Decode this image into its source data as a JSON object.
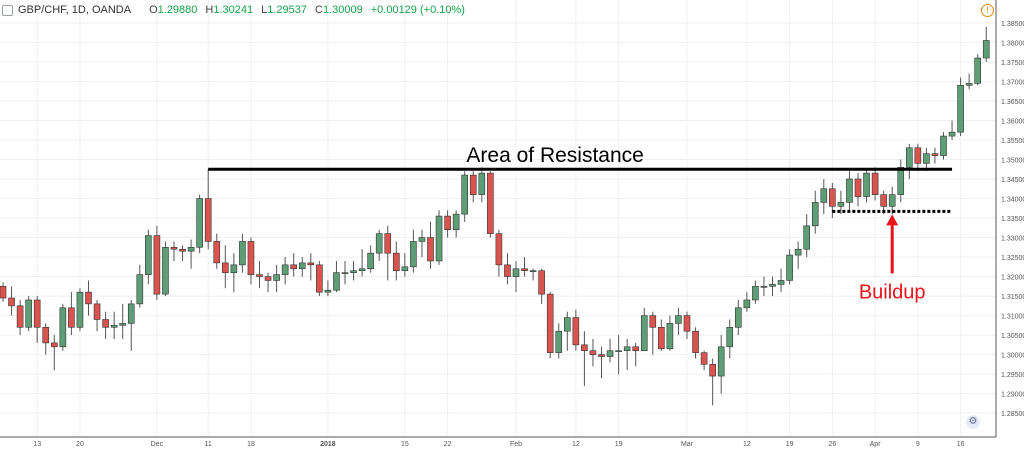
{
  "header": {
    "symbol": "GBP/CHF, 1D, OANDA",
    "open_label": "O",
    "open": "1.29880",
    "high_label": "H",
    "high": "1.30241",
    "low_label": "L",
    "low": "1.29537",
    "close_label": "C",
    "close": "1.30009",
    "change": "+0.00129 (+0.10%)"
  },
  "icons": {
    "menu": "checkbox-icon",
    "warning": "alert-icon",
    "settings": "gear-icon"
  },
  "colors": {
    "up": "#5e9e77",
    "down": "#d9534f",
    "resistance": "#000000",
    "arrow": "#e8141b",
    "buildup_text": "#e8141b"
  },
  "chart_data": {
    "type": "candlestick",
    "ylim": [
      1.2835,
      1.386
    ],
    "y_ticks": [
      "1.38500",
      "1.38000",
      "1.37500",
      "1.37000",
      "1.36500",
      "1.36000",
      "1.35500",
      "1.35000",
      "1.34500",
      "1.34000",
      "1.33500",
      "1.33000",
      "1.32500",
      "1.32000",
      "1.31500",
      "1.31000",
      "1.30500",
      "1.30000",
      "1.29500",
      "1.29000",
      "1.28500"
    ],
    "x_tick_labels": [
      {
        "index": 4,
        "label": "13"
      },
      {
        "index": 9,
        "label": "20"
      },
      {
        "index": 18,
        "label": "Dec"
      },
      {
        "index": 24,
        "label": "11"
      },
      {
        "index": 29,
        "label": "18"
      },
      {
        "index": 38,
        "label": "2018"
      },
      {
        "index": 47,
        "label": "15"
      },
      {
        "index": 52,
        "label": "22"
      },
      {
        "index": 60,
        "label": "Feb"
      },
      {
        "index": 67,
        "label": "12"
      },
      {
        "index": 72,
        "label": "19"
      },
      {
        "index": 80,
        "label": "Mar"
      },
      {
        "index": 87,
        "label": "12"
      },
      {
        "index": 92,
        "label": "19"
      },
      {
        "index": 97,
        "label": "26"
      },
      {
        "index": 102,
        "label": "Apr"
      },
      {
        "index": 107,
        "label": "9"
      },
      {
        "index": 112,
        "label": "16"
      }
    ],
    "candles": [
      [
        1.3175,
        1.3145,
        1.3185,
        1.3135
      ],
      [
        1.3145,
        1.3125,
        1.3175,
        1.31
      ],
      [
        1.3125,
        1.307,
        1.314,
        1.305
      ],
      [
        1.307,
        1.314,
        1.315,
        1.306
      ],
      [
        1.314,
        1.307,
        1.315,
        1.303
      ],
      [
        1.307,
        1.303,
        1.308,
        1.3
      ],
      [
        1.303,
        1.302,
        1.305,
        1.296
      ],
      [
        1.302,
        1.312,
        1.313,
        1.301
      ],
      [
        1.312,
        1.307,
        1.316,
        1.305
      ],
      [
        1.307,
        1.316,
        1.317,
        1.306
      ],
      [
        1.316,
        1.313,
        1.319,
        1.31
      ],
      [
        1.313,
        1.309,
        1.314,
        1.306
      ],
      [
        1.309,
        1.307,
        1.311,
        1.304
      ],
      [
        1.307,
        1.3075,
        1.311,
        1.304
      ],
      [
        1.3075,
        1.308,
        1.313,
        1.304
      ],
      [
        1.308,
        1.313,
        1.314,
        1.301
      ],
      [
        1.313,
        1.3205,
        1.323,
        1.312
      ],
      [
        1.3205,
        1.3305,
        1.332,
        1.318
      ],
      [
        1.3305,
        1.3155,
        1.333,
        1.314
      ],
      [
        1.3155,
        1.3275,
        1.329,
        1.315
      ],
      [
        1.3275,
        1.327,
        1.329,
        1.324
      ],
      [
        1.327,
        1.3265,
        1.328,
        1.324
      ],
      [
        1.3265,
        1.3275,
        1.3295,
        1.322
      ],
      [
        1.3275,
        1.34,
        1.341,
        1.326
      ],
      [
        1.34,
        1.329,
        1.3475,
        1.327
      ],
      [
        1.329,
        1.3235,
        1.331,
        1.322
      ],
      [
        1.3235,
        1.321,
        1.328,
        1.317
      ],
      [
        1.321,
        1.323,
        1.326,
        1.316
      ],
      [
        1.323,
        1.329,
        1.331,
        1.321
      ],
      [
        1.329,
        1.3205,
        1.33,
        1.318
      ],
      [
        1.3205,
        1.32,
        1.324,
        1.317
      ],
      [
        1.32,
        1.319,
        1.321,
        1.316
      ],
      [
        1.319,
        1.3205,
        1.323,
        1.316
      ],
      [
        1.3205,
        1.323,
        1.325,
        1.318
      ],
      [
        1.323,
        1.322,
        1.326,
        1.32
      ],
      [
        1.322,
        1.3235,
        1.325,
        1.32
      ],
      [
        1.3235,
        1.323,
        1.326,
        1.319
      ],
      [
        1.323,
        1.316,
        1.324,
        1.315
      ],
      [
        1.316,
        1.3165,
        1.319,
        1.315
      ],
      [
        1.3165,
        1.321,
        1.324,
        1.316
      ],
      [
        1.321,
        1.321,
        1.324,
        1.318
      ],
      [
        1.321,
        1.3215,
        1.324,
        1.319
      ],
      [
        1.3215,
        1.322,
        1.327,
        1.32
      ],
      [
        1.322,
        1.326,
        1.328,
        1.321
      ],
      [
        1.326,
        1.331,
        1.332,
        1.324
      ],
      [
        1.331,
        1.326,
        1.333,
        1.319
      ],
      [
        1.326,
        1.3215,
        1.329,
        1.319
      ],
      [
        1.3215,
        1.3225,
        1.326,
        1.32
      ],
      [
        1.3225,
        1.329,
        1.332,
        1.321
      ],
      [
        1.329,
        1.33,
        1.332,
        1.325
      ],
      [
        1.33,
        1.324,
        1.334,
        1.322
      ],
      [
        1.324,
        1.3355,
        1.337,
        1.323
      ],
      [
        1.3355,
        1.332,
        1.337,
        1.33
      ],
      [
        1.332,
        1.336,
        1.337,
        1.33
      ],
      [
        1.336,
        1.346,
        1.347,
        1.334
      ],
      [
        1.346,
        1.341,
        1.347,
        1.339
      ],
      [
        1.341,
        1.3465,
        1.348,
        1.339
      ],
      [
        1.3465,
        1.331,
        1.347,
        1.33
      ],
      [
        1.331,
        1.323,
        1.332,
        1.32
      ],
      [
        1.323,
        1.32,
        1.326,
        1.318
      ],
      [
        1.32,
        1.322,
        1.324,
        1.316
      ],
      [
        1.322,
        1.3215,
        1.325,
        1.32
      ],
      [
        1.3215,
        1.3215,
        1.322,
        1.319
      ],
      [
        1.3215,
        1.3155,
        1.322,
        1.313
      ],
      [
        1.3155,
        1.3005,
        1.316,
        1.299
      ],
      [
        1.3005,
        1.306,
        1.308,
        1.299
      ],
      [
        1.306,
        1.3095,
        1.311,
        1.301
      ],
      [
        1.3095,
        1.3025,
        1.3115,
        1.301
      ],
      [
        1.3025,
        1.301,
        1.306,
        1.292
      ],
      [
        1.301,
        1.3,
        1.304,
        1.297
      ],
      [
        1.3,
        1.2995,
        1.302,
        1.294
      ],
      [
        1.2995,
        1.301,
        1.304,
        1.298
      ],
      [
        1.301,
        1.301,
        1.305,
        1.295
      ],
      [
        1.301,
        1.302,
        1.304,
        1.296
      ],
      [
        1.302,
        1.301,
        1.303,
        1.297
      ],
      [
        1.301,
        1.31,
        1.312,
        1.301
      ],
      [
        1.31,
        1.307,
        1.311,
        1.3
      ],
      [
        1.307,
        1.3015,
        1.309,
        1.301
      ],
      [
        1.3015,
        1.308,
        1.31,
        1.301
      ],
      [
        1.308,
        1.31,
        1.312,
        1.305
      ],
      [
        1.31,
        1.306,
        1.311,
        1.304
      ],
      [
        1.306,
        1.3005,
        1.307,
        1.299
      ],
      [
        1.3005,
        1.2975,
        1.301,
        1.296
      ],
      [
        1.2975,
        1.2945,
        1.299,
        1.287
      ],
      [
        1.2945,
        1.302,
        1.305,
        1.29
      ],
      [
        1.302,
        1.307,
        1.309,
        1.299
      ],
      [
        1.307,
        1.312,
        1.314,
        1.305
      ],
      [
        1.312,
        1.314,
        1.316,
        1.311
      ],
      [
        1.314,
        1.3175,
        1.319,
        1.313
      ],
      [
        1.3175,
        1.3175,
        1.32,
        1.315
      ],
      [
        1.3175,
        1.318,
        1.32,
        1.315
      ],
      [
        1.318,
        1.319,
        1.322,
        1.316
      ],
      [
        1.319,
        1.3255,
        1.327,
        1.318
      ],
      [
        1.3255,
        1.327,
        1.329,
        1.322
      ],
      [
        1.327,
        1.333,
        1.336,
        1.325
      ],
      [
        1.333,
        1.339,
        1.342,
        1.331
      ],
      [
        1.339,
        1.3425,
        1.345,
        1.336
      ],
      [
        1.3425,
        1.338,
        1.344,
        1.335
      ],
      [
        1.338,
        1.339,
        1.342,
        1.336
      ],
      [
        1.339,
        1.345,
        1.347,
        1.337
      ],
      [
        1.345,
        1.3405,
        1.3465,
        1.338
      ],
      [
        1.3405,
        1.3465,
        1.3475,
        1.339
      ],
      [
        1.3465,
        1.341,
        1.348,
        1.3395
      ],
      [
        1.341,
        1.338,
        1.342,
        1.336
      ],
      [
        1.338,
        1.341,
        1.343,
        1.336
      ],
      [
        1.341,
        1.348,
        1.35,
        1.339
      ],
      [
        1.348,
        1.353,
        1.354,
        1.345
      ],
      [
        1.353,
        1.349,
        1.354,
        1.347
      ],
      [
        1.349,
        1.3515,
        1.353,
        1.347
      ],
      [
        1.3515,
        1.351,
        1.353,
        1.349
      ],
      [
        1.351,
        1.356,
        1.357,
        1.35
      ],
      [
        1.356,
        1.357,
        1.36,
        1.355
      ],
      [
        1.357,
        1.369,
        1.371,
        1.356
      ],
      [
        1.369,
        1.3695,
        1.372,
        1.368
      ],
      [
        1.3695,
        1.376,
        1.377,
        1.369
      ],
      [
        1.376,
        1.3805,
        1.384,
        1.375
      ]
    ],
    "annotations": {
      "resistance": {
        "label": "Area of Resistance",
        "price": 1.3475,
        "from_index": 24,
        "to_index": 111
      },
      "buildup": {
        "label": "Buildup",
        "price": 1.3367,
        "from_index": 97,
        "to_index": 111,
        "arrow_index": 104
      }
    }
  }
}
